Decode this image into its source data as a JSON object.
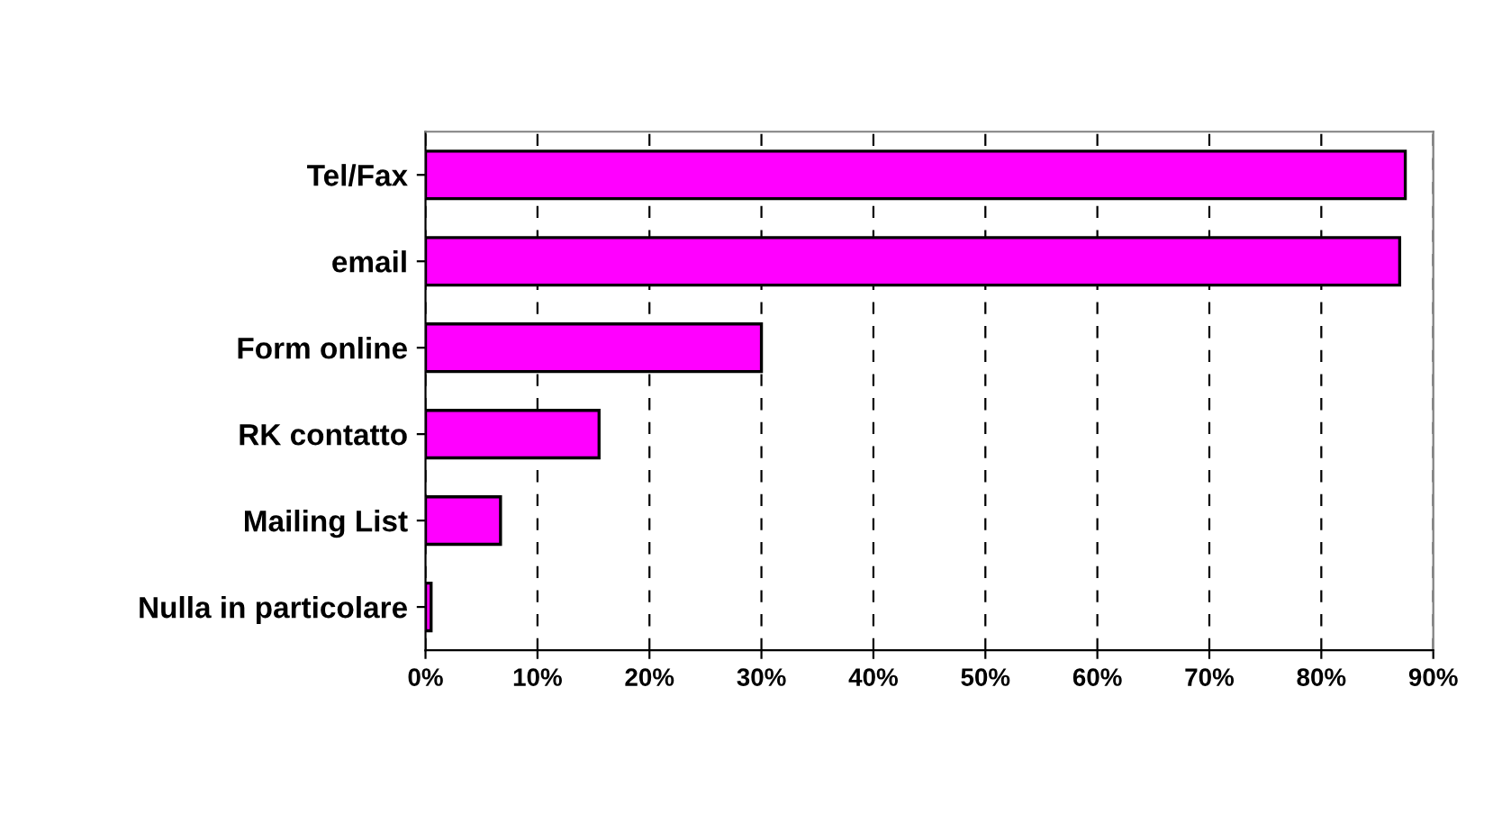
{
  "chart_data": {
    "type": "bar",
    "orientation": "horizontal",
    "categories": [
      "Tel/Fax",
      "email",
      "Form online",
      "RK contatto",
      "Mailing List",
      "Nulla in particolare"
    ],
    "values": [
      87.5,
      87,
      30,
      15.5,
      6.7,
      0.5
    ],
    "color": "#ff00ff",
    "xlim": [
      0,
      90
    ],
    "xticks": [
      {
        "value": 0,
        "label": "0%"
      },
      {
        "value": 10,
        "label": "10%"
      },
      {
        "value": 20,
        "label": "20%"
      },
      {
        "value": 30,
        "label": "30%"
      },
      {
        "value": 40,
        "label": "40%"
      },
      {
        "value": 50,
        "label": "50%"
      },
      {
        "value": 60,
        "label": "60%"
      },
      {
        "value": 70,
        "label": "70%"
      },
      {
        "value": 80,
        "label": "80%"
      },
      {
        "value": 90,
        "label": "90%"
      }
    ],
    "grid": "x"
  }
}
